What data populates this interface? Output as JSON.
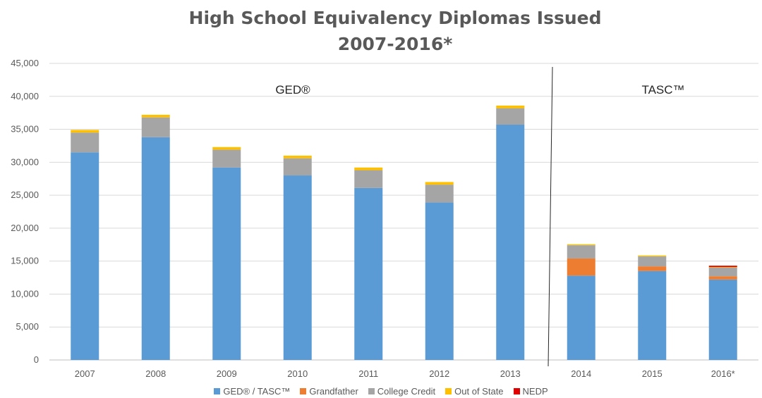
{
  "chart_data": {
    "type": "bar",
    "stacked": true,
    "title": "High School Equivalency Diplomas Issued",
    "subtitle": "2007-2016*",
    "categories": [
      "2007",
      "2008",
      "2009",
      "2010",
      "2011",
      "2012",
      "2013",
      "2014",
      "2015",
      "2016*"
    ],
    "ylim": [
      0,
      45000
    ],
    "yticks": [
      "0",
      "5,000",
      "10,000",
      "15,000",
      "20,000",
      "25,000",
      "30,000",
      "35,000",
      "40,000",
      "45,000"
    ],
    "grid": true,
    "legend_position": "bottom",
    "series": [
      {
        "name": "GED® / TASC™",
        "color": "#5B9BD5",
        "values": [
          31500,
          33800,
          29200,
          28000,
          26100,
          23900,
          35700,
          12800,
          13500,
          12200
        ]
      },
      {
        "name": "Grandfather",
        "color": "#ED7D31",
        "values": [
          0,
          0,
          0,
          0,
          0,
          0,
          0,
          2600,
          700,
          500
        ]
      },
      {
        "name": "College Credit",
        "color": "#A5A5A5",
        "values": [
          3000,
          3000,
          2700,
          2600,
          2700,
          2700,
          2500,
          2000,
          1500,
          1300
        ]
      },
      {
        "name": "Out of State",
        "color": "#FFC000",
        "values": [
          400,
          400,
          400,
          400,
          400,
          400,
          400,
          150,
          150,
          100
        ]
      },
      {
        "name": "NEDP",
        "color": "#E00000",
        "values": [
          0,
          0,
          0,
          0,
          0,
          0,
          0,
          0,
          0,
          200
        ]
      }
    ],
    "annotations": [
      {
        "text": "GED®",
        "at_category": "2010"
      },
      {
        "text": "TASC™",
        "at_category": "2015"
      }
    ]
  }
}
